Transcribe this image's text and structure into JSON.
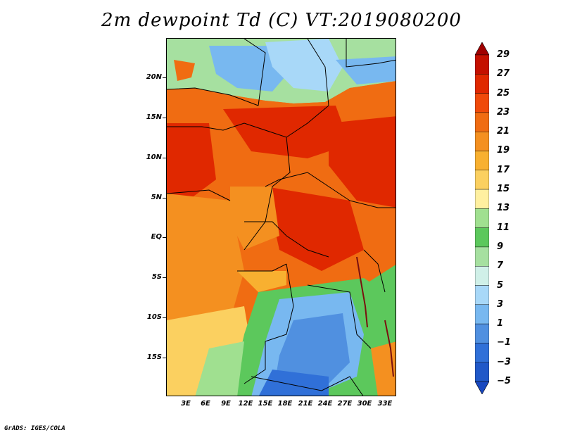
{
  "title": "2m dewpoint Td (C) VT:2019080200",
  "credit": "GrADS: IGES/COLA",
  "map": {
    "lat_labels": [
      "20N",
      "15N",
      "10N",
      "5N",
      "EQ",
      "5S",
      "10S",
      "15S"
    ],
    "lon_labels": [
      "3E",
      "6E",
      "9E",
      "12E",
      "15E",
      "18E",
      "21E",
      "24E",
      "27E",
      "30E",
      "33E"
    ],
    "lon_range": [
      0,
      34.5
    ],
    "lat_range": [
      -20,
      24.5
    ]
  },
  "colorbar": {
    "labels": [
      "29",
      "27",
      "25",
      "23",
      "21",
      "19",
      "17",
      "15",
      "13",
      "11",
      "9",
      "7",
      "5",
      "3",
      "1",
      "−1",
      "−3",
      "−5"
    ],
    "colors": [
      "#a00000",
      "#c41000",
      "#e02800",
      "#f04a0a",
      "#f06c12",
      "#f49020",
      "#f8b030",
      "#fbd060",
      "#fff0a0",
      "#a0e090",
      "#5cc85c",
      "#a6e0a0",
      "#d0f0e8",
      "#a8d8f8",
      "#78b8f0",
      "#5090e0",
      "#3070d8",
      "#2058c8",
      "#1848c0"
    ]
  }
}
